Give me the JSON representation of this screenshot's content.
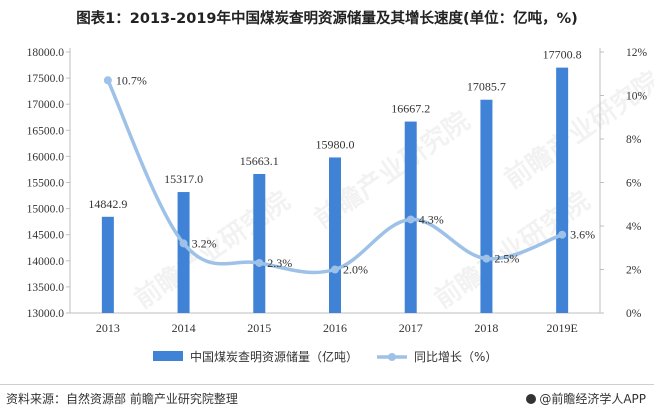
{
  "title": "图表1：2013-2019年中国煤炭查明资源储量及其增长速度(单位：亿吨，%)",
  "footer": {
    "source": "资料来源：自然资源部 前瞻产业研究院整理",
    "brand": "@前瞻经济学人APP"
  },
  "watermark": "前瞻产业研究院",
  "colors": {
    "bar": "#3f82d6",
    "line": "#9ec1e8",
    "axis": "#bfbfbf",
    "text": "#333333"
  },
  "chart_data": {
    "type": "bar",
    "categories": [
      "2013",
      "2014",
      "2015",
      "2016",
      "2017",
      "2018",
      "2019E"
    ],
    "series": [
      {
        "name": "中国煤炭查明资源储量（亿吨）",
        "type": "bar",
        "axis": "left",
        "values": [
          14842.9,
          15317.0,
          15663.1,
          15980.0,
          16667.2,
          17085.7,
          17700.8
        ],
        "labels": [
          "14842.9",
          "15317.0",
          "15663.1",
          "15980.0",
          "16667.2",
          "17085.7",
          "17700.8"
        ]
      },
      {
        "name": "同比增长（%）",
        "type": "line",
        "axis": "right",
        "values": [
          10.7,
          3.2,
          2.3,
          2.0,
          4.3,
          2.5,
          3.6
        ],
        "labels": [
          "10.7%",
          "3.2%",
          "2.3%",
          "2.0%",
          "4.3%",
          "2.5%",
          "3.6%"
        ]
      }
    ],
    "y_left": {
      "ylim": [
        13000,
        18000
      ],
      "ticks": [
        "13000.0",
        "13500.0",
        "14000.0",
        "14500.0",
        "15000.0",
        "15500.0",
        "16000.0",
        "16500.0",
        "17000.0",
        "17500.0",
        "18000.0"
      ]
    },
    "y_right": {
      "ylim": [
        0,
        12
      ],
      "ticks": [
        "0%",
        "2%",
        "4%",
        "6%",
        "8%",
        "10%",
        "12%"
      ]
    },
    "legend": "bottom-center",
    "grid": false
  }
}
